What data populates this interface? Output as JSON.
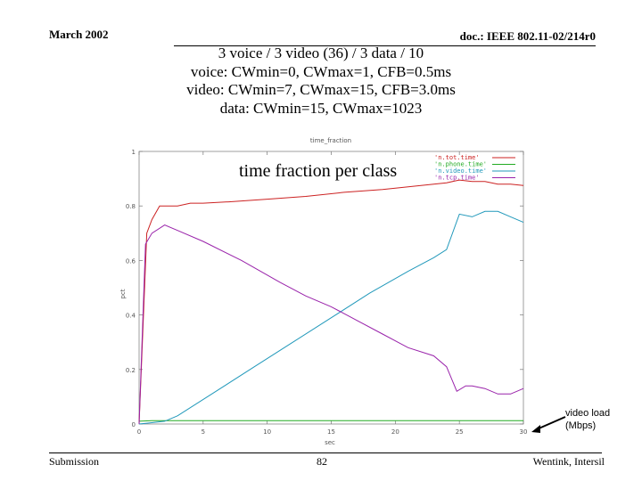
{
  "header": {
    "date": "March 2002",
    "doc": "doc.: IEEE 802.11-02/214r0"
  },
  "title_lines": [
    "3 voice / 3 video (36) / 3 data / 10",
    "voice: CWmin=0, CWmax=1, CFB=0.5ms",
    "video: CWmin=7, CWmax=15, CFB=3.0ms",
    "data: CWmin=15, CWmax=1023"
  ],
  "overlay_title": "time fraction per class",
  "annotation": {
    "line1": "video load",
    "line2": "(Mbps)"
  },
  "footer": {
    "left": "Submission",
    "center": "82",
    "right": "Wentink, Intersil"
  },
  "chart_data": {
    "type": "line",
    "title": "time_fraction",
    "xlabel": "sec",
    "ylabel": "pct",
    "xlim": [
      0,
      30
    ],
    "ylim": [
      0,
      1
    ],
    "x_ticks": [
      "0",
      "5",
      "10",
      "15",
      "20",
      "25",
      "30"
    ],
    "y_ticks": [
      "0",
      "0.2",
      "0.4",
      "0.6",
      "0.8",
      "1"
    ],
    "legend_position": "top-right",
    "series": [
      {
        "name": "'n.tot.time'",
        "color": "#cc2222",
        "points": [
          [
            0,
            0
          ],
          [
            0.6,
            0.7
          ],
          [
            1,
            0.75
          ],
          [
            1.6,
            0.8
          ],
          [
            2,
            0.8
          ],
          [
            3,
            0.8
          ],
          [
            4,
            0.81
          ],
          [
            5,
            0.81
          ],
          [
            7,
            0.815
          ],
          [
            10,
            0.825
          ],
          [
            13,
            0.835
          ],
          [
            16,
            0.85
          ],
          [
            19,
            0.86
          ],
          [
            22,
            0.875
          ],
          [
            24,
            0.885
          ],
          [
            25,
            0.895
          ],
          [
            26,
            0.89
          ],
          [
            27,
            0.89
          ],
          [
            28,
            0.88
          ],
          [
            29,
            0.88
          ],
          [
            30,
            0.875
          ]
        ]
      },
      {
        "name": "'n.phone.time'",
        "color": "#22aa22",
        "points": [
          [
            0,
            0.01
          ],
          [
            1,
            0.012
          ],
          [
            5,
            0.012
          ],
          [
            10,
            0.012
          ],
          [
            15,
            0.012
          ],
          [
            20,
            0.012
          ],
          [
            25,
            0.012
          ],
          [
            30,
            0.012
          ]
        ]
      },
      {
        "name": "'n.video.time'",
        "color": "#2299bb",
        "points": [
          [
            0,
            0
          ],
          [
            1,
            0.005
          ],
          [
            2,
            0.01
          ],
          [
            3,
            0.03
          ],
          [
            6,
            0.12
          ],
          [
            9,
            0.21
          ],
          [
            12,
            0.3
          ],
          [
            15,
            0.39
          ],
          [
            18,
            0.48
          ],
          [
            21,
            0.56
          ],
          [
            23,
            0.61
          ],
          [
            24,
            0.64
          ],
          [
            25,
            0.77
          ],
          [
            26,
            0.76
          ],
          [
            27,
            0.78
          ],
          [
            28,
            0.78
          ],
          [
            29,
            0.76
          ],
          [
            30,
            0.74
          ]
        ]
      },
      {
        "name": "'n.tcp.time'",
        "color": "#9922aa",
        "points": [
          [
            0,
            0
          ],
          [
            0.5,
            0.66
          ],
          [
            1,
            0.7
          ],
          [
            2,
            0.73
          ],
          [
            3,
            0.71
          ],
          [
            5,
            0.67
          ],
          [
            8,
            0.6
          ],
          [
            11,
            0.52
          ],
          [
            13,
            0.47
          ],
          [
            15,
            0.43
          ],
          [
            17,
            0.38
          ],
          [
            19,
            0.33
          ],
          [
            21,
            0.28
          ],
          [
            23,
            0.25
          ],
          [
            24,
            0.21
          ],
          [
            24.8,
            0.12
          ],
          [
            25.5,
            0.14
          ],
          [
            26,
            0.14
          ],
          [
            27,
            0.13
          ],
          [
            28,
            0.11
          ],
          [
            29,
            0.11
          ],
          [
            30,
            0.13
          ]
        ]
      }
    ]
  }
}
